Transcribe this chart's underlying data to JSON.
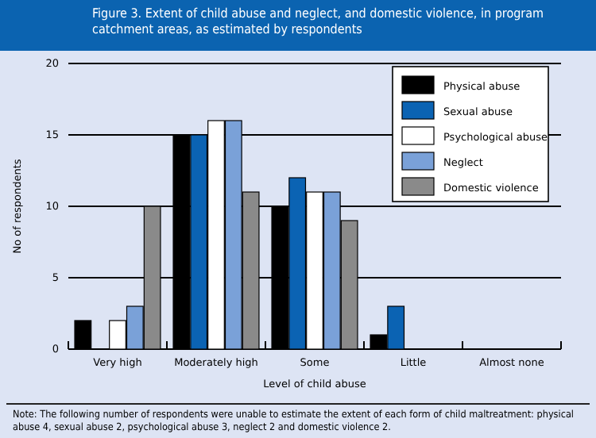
{
  "chart_data": {
    "type": "bar",
    "title": "Figure 3. Extent of child abuse and neglect, and domestic violence, in program catchment areas, as estimated by respondents",
    "xlabel": "Level of child abuse",
    "ylabel": "No of respondents",
    "categories": [
      "Very high",
      "Moderately high",
      "Some",
      "Little",
      "Almost none"
    ],
    "series": [
      {
        "name": "Physical abuse",
        "color": "#000000",
        "values": [
          2,
          15,
          10,
          1,
          0
        ]
      },
      {
        "name": "Sexual abuse",
        "color": "#0b63b3",
        "values": [
          0,
          15,
          12,
          3,
          0
        ]
      },
      {
        "name": "Psychological abuse",
        "color": "#ffffff",
        "values": [
          2,
          16,
          11,
          0,
          0
        ]
      },
      {
        "name": "Neglect",
        "color": "#7aa1d8",
        "values": [
          3,
          16,
          11,
          0,
          0
        ]
      },
      {
        "name": "Domestic violence",
        "color": "#8a8a8a",
        "values": [
          10,
          11,
          9,
          0,
          0
        ]
      }
    ],
    "ylim": [
      0,
      20
    ],
    "yticks": [
      0,
      5,
      10,
      15,
      20
    ],
    "grid": "y",
    "legend": "top right",
    "annotations": [
      "Note: The following number of respondents were unable to estimate the extent of each form of child maltreatment: physical abuse 4, sexual abuse 2, psychological abuse 3, neglect 2 and domestic violence 2."
    ]
  }
}
